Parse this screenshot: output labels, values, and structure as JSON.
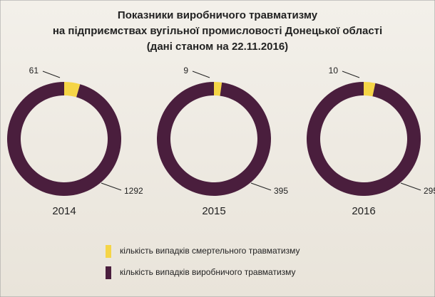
{
  "chart_data": {
    "type": "donut",
    "title": [
      "Показники виробничого травматизму",
      "на підприємствах вугільної промисловості Донецької області"
    ],
    "subtitle": "(дані станом на 22.11.2016)",
    "categories": [
      "кількість випадків смертельного травматизму",
      "кількість випадків виробничого травматизму"
    ],
    "colors": [
      "#f5d547",
      "#4a1e3d"
    ],
    "series": [
      {
        "name": "2014",
        "values": [
          61,
          1292
        ]
      },
      {
        "name": "2015",
        "values": [
          9,
          395
        ]
      },
      {
        "name": "2016",
        "values": [
          10,
          295
        ]
      }
    ]
  }
}
